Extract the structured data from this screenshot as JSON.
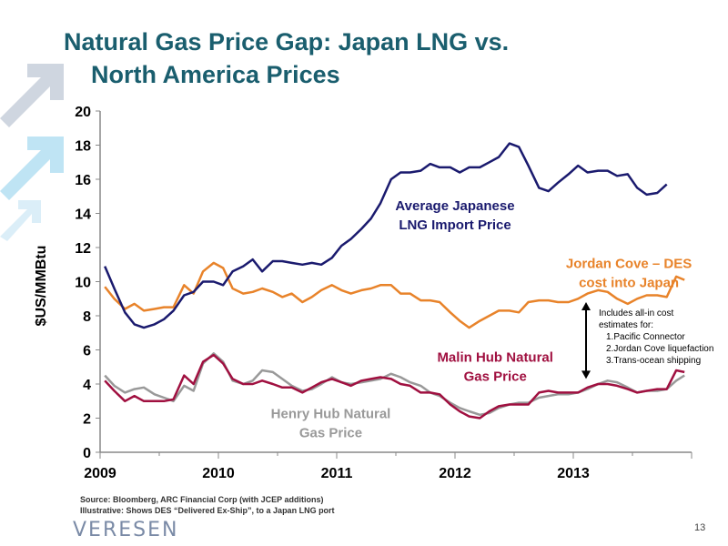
{
  "slide": {
    "title_line1": "Natural Gas Price Gap: Japan LNG vs.",
    "title_line2": "North America Prices",
    "source_line1": "Source: Bloomberg, ARC Financial Corp (with JCEP additions)",
    "source_line2": "Illustrative: Shows DES “Delivered Ex-Ship”, to a Japan LNG port",
    "logo_text": "VERESEN",
    "page_number": "13"
  },
  "colors": {
    "title": "#1a5e6e",
    "japan_lng": "#1a1a6e",
    "jordan_cove": "#e8832a",
    "malin_hub": "#a01040",
    "henry_hub": "#999999"
  },
  "chart_data": {
    "type": "line",
    "title": "",
    "xlabel": "",
    "ylabel": "$US/MMBtu",
    "xlim": [
      2009.0,
      2014.0
    ],
    "ylim": [
      0,
      20
    ],
    "yticks": [
      0,
      2,
      4,
      6,
      8,
      10,
      12,
      14,
      16,
      18,
      20
    ],
    "xticks": [
      2009,
      2010,
      2011,
      2012,
      2013
    ],
    "grid": false,
    "series": [
      {
        "name": "Average Japanese LNG Import Price",
        "label_lines": [
          "Average Japanese",
          "LNG Import Price"
        ],
        "color_key": "japan_lng",
        "x": [
          2009.04,
          2009.12,
          2009.21,
          2009.29,
          2009.37,
          2009.46,
          2009.54,
          2009.62,
          2009.71,
          2009.79,
          2009.87,
          2009.96,
          2010.04,
          2010.12,
          2010.21,
          2010.29,
          2010.37,
          2010.46,
          2010.54,
          2010.62,
          2010.71,
          2010.79,
          2010.87,
          2010.96,
          2011.04,
          2011.12,
          2011.21,
          2011.29,
          2011.37,
          2011.46,
          2011.54,
          2011.62,
          2011.71,
          2011.79,
          2011.87,
          2011.96,
          2012.04,
          2012.12,
          2012.21,
          2012.29,
          2012.37,
          2012.46,
          2012.54,
          2012.62,
          2012.71,
          2012.79,
          2012.87,
          2012.96,
          2013.04,
          2013.12,
          2013.21,
          2013.29,
          2013.37,
          2013.46,
          2013.54,
          2013.62,
          2013.71,
          2013.79
        ],
        "y": [
          10.9,
          9.6,
          8.2,
          7.5,
          7.3,
          7.5,
          7.8,
          8.3,
          9.2,
          9.4,
          10.0,
          10.0,
          9.8,
          10.6,
          10.9,
          11.3,
          10.6,
          11.2,
          11.2,
          11.1,
          11.0,
          11.1,
          11.0,
          11.4,
          12.1,
          12.5,
          13.1,
          13.7,
          14.6,
          16.0,
          16.4,
          16.4,
          16.5,
          16.9,
          16.7,
          16.7,
          16.4,
          16.7,
          16.7,
          17.0,
          17.3,
          18.1,
          17.9,
          16.8,
          15.5,
          15.3,
          15.8,
          16.3,
          16.8,
          16.4,
          16.5,
          16.5,
          16.2,
          16.3,
          15.5,
          15.1,
          15.2,
          15.7
        ]
      },
      {
        "name": "Jordan Cove – DES cost into Japan",
        "label_lines": [
          "Jordan Cove – DES",
          "cost into Japan"
        ],
        "color_key": "jordan_cove",
        "x": [
          2009.04,
          2009.12,
          2009.21,
          2009.29,
          2009.37,
          2009.46,
          2009.54,
          2009.62,
          2009.71,
          2009.79,
          2009.87,
          2009.96,
          2010.04,
          2010.12,
          2010.21,
          2010.29,
          2010.37,
          2010.46,
          2010.54,
          2010.62,
          2010.71,
          2010.79,
          2010.87,
          2010.96,
          2011.04,
          2011.12,
          2011.21,
          2011.29,
          2011.37,
          2011.46,
          2011.54,
          2011.62,
          2011.71,
          2011.79,
          2011.87,
          2011.96,
          2012.04,
          2012.12,
          2012.21,
          2012.29,
          2012.37,
          2012.46,
          2012.54,
          2012.62,
          2012.71,
          2012.79,
          2012.87,
          2012.96,
          2013.04,
          2013.12,
          2013.21,
          2013.29,
          2013.37,
          2013.46,
          2013.54,
          2013.62,
          2013.71,
          2013.79,
          2013.87,
          2013.94
        ],
        "y": [
          9.7,
          9.0,
          8.4,
          8.7,
          8.3,
          8.4,
          8.5,
          8.5,
          9.8,
          9.3,
          10.6,
          11.1,
          10.8,
          9.6,
          9.3,
          9.4,
          9.6,
          9.4,
          9.1,
          9.3,
          8.8,
          9.1,
          9.5,
          9.8,
          9.5,
          9.3,
          9.5,
          9.6,
          9.8,
          9.8,
          9.3,
          9.3,
          8.9,
          8.9,
          8.8,
          8.2,
          7.7,
          7.3,
          7.7,
          8.0,
          8.3,
          8.3,
          8.2,
          8.8,
          8.9,
          8.9,
          8.8,
          8.8,
          9.0,
          9.3,
          9.5,
          9.4,
          9.0,
          8.7,
          9.0,
          9.2,
          9.2,
          9.1,
          10.3,
          10.1
        ]
      },
      {
        "name": "Malin Hub Natural Gas Price",
        "label_lines": [
          "Malin Hub Natural",
          "Gas Price"
        ],
        "color_key": "malin_hub",
        "x": [
          2009.04,
          2009.12,
          2009.21,
          2009.29,
          2009.37,
          2009.46,
          2009.54,
          2009.62,
          2009.71,
          2009.79,
          2009.87,
          2009.96,
          2010.04,
          2010.12,
          2010.21,
          2010.29,
          2010.37,
          2010.46,
          2010.54,
          2010.62,
          2010.71,
          2010.79,
          2010.87,
          2010.96,
          2011.04,
          2011.12,
          2011.21,
          2011.29,
          2011.37,
          2011.46,
          2011.54,
          2011.62,
          2011.71,
          2011.79,
          2011.87,
          2011.96,
          2012.04,
          2012.12,
          2012.21,
          2012.29,
          2012.37,
          2012.46,
          2012.54,
          2012.62,
          2012.71,
          2012.79,
          2012.87,
          2012.96,
          2013.04,
          2013.12,
          2013.21,
          2013.29,
          2013.37,
          2013.46,
          2013.54,
          2013.62,
          2013.71,
          2013.79,
          2013.87,
          2013.94
        ],
        "y": [
          4.2,
          3.6,
          3.0,
          3.3,
          3.0,
          3.0,
          3.0,
          3.1,
          4.5,
          4.0,
          5.3,
          5.7,
          5.2,
          4.3,
          4.0,
          4.0,
          4.2,
          4.0,
          3.8,
          3.8,
          3.5,
          3.8,
          4.1,
          4.3,
          4.1,
          3.9,
          4.2,
          4.3,
          4.4,
          4.3,
          4.0,
          3.9,
          3.5,
          3.5,
          3.4,
          2.8,
          2.4,
          2.1,
          2.0,
          2.4,
          2.7,
          2.8,
          2.8,
          2.8,
          3.5,
          3.6,
          3.5,
          3.5,
          3.5,
          3.8,
          4.0,
          4.0,
          3.9,
          3.7,
          3.5,
          3.6,
          3.7,
          3.7,
          4.8,
          4.7
        ]
      },
      {
        "name": "Henry Hub Natural Gas Price",
        "label_lines": [
          "Henry Hub Natural",
          "Gas Price"
        ],
        "color_key": "henry_hub",
        "x": [
          2009.04,
          2009.12,
          2009.21,
          2009.29,
          2009.37,
          2009.46,
          2009.54,
          2009.62,
          2009.71,
          2009.79,
          2009.87,
          2009.96,
          2010.04,
          2010.12,
          2010.21,
          2010.29,
          2010.37,
          2010.46,
          2010.54,
          2010.62,
          2010.71,
          2010.79,
          2010.87,
          2010.96,
          2011.04,
          2011.12,
          2011.21,
          2011.29,
          2011.37,
          2011.46,
          2011.54,
          2011.62,
          2011.71,
          2011.79,
          2011.87,
          2011.96,
          2012.04,
          2012.12,
          2012.21,
          2012.29,
          2012.37,
          2012.46,
          2012.54,
          2012.62,
          2012.71,
          2012.79,
          2012.87,
          2012.96,
          2013.04,
          2013.12,
          2013.21,
          2013.29,
          2013.37,
          2013.46,
          2013.54,
          2013.62,
          2013.71,
          2013.79,
          2013.87,
          2013.94
        ],
        "y": [
          4.5,
          3.9,
          3.5,
          3.7,
          3.8,
          3.4,
          3.2,
          3.0,
          3.9,
          3.6,
          5.2,
          5.8,
          5.3,
          4.2,
          4.0,
          4.2,
          4.8,
          4.7,
          4.3,
          3.9,
          3.6,
          3.7,
          4.0,
          4.4,
          4.1,
          4.0,
          4.1,
          4.2,
          4.3,
          4.6,
          4.4,
          4.1,
          3.9,
          3.5,
          3.3,
          2.9,
          2.6,
          2.4,
          2.2,
          2.3,
          2.6,
          2.8,
          2.9,
          2.9,
          3.2,
          3.3,
          3.4,
          3.4,
          3.5,
          3.7,
          4.0,
          4.2,
          4.1,
          3.8,
          3.5,
          3.6,
          3.6,
          3.7,
          4.2,
          4.5
        ]
      }
    ],
    "annotation": {
      "lines": [
        "Includes all-in cost",
        "estimates for:",
        "1.Pacific Connector",
        "2.Jordan Cove liquefaction",
        "3.Trans-ocean shipping"
      ],
      "arrow_x": 2013.0,
      "arrow_from": 8.8,
      "arrow_to": 4.3
    }
  }
}
